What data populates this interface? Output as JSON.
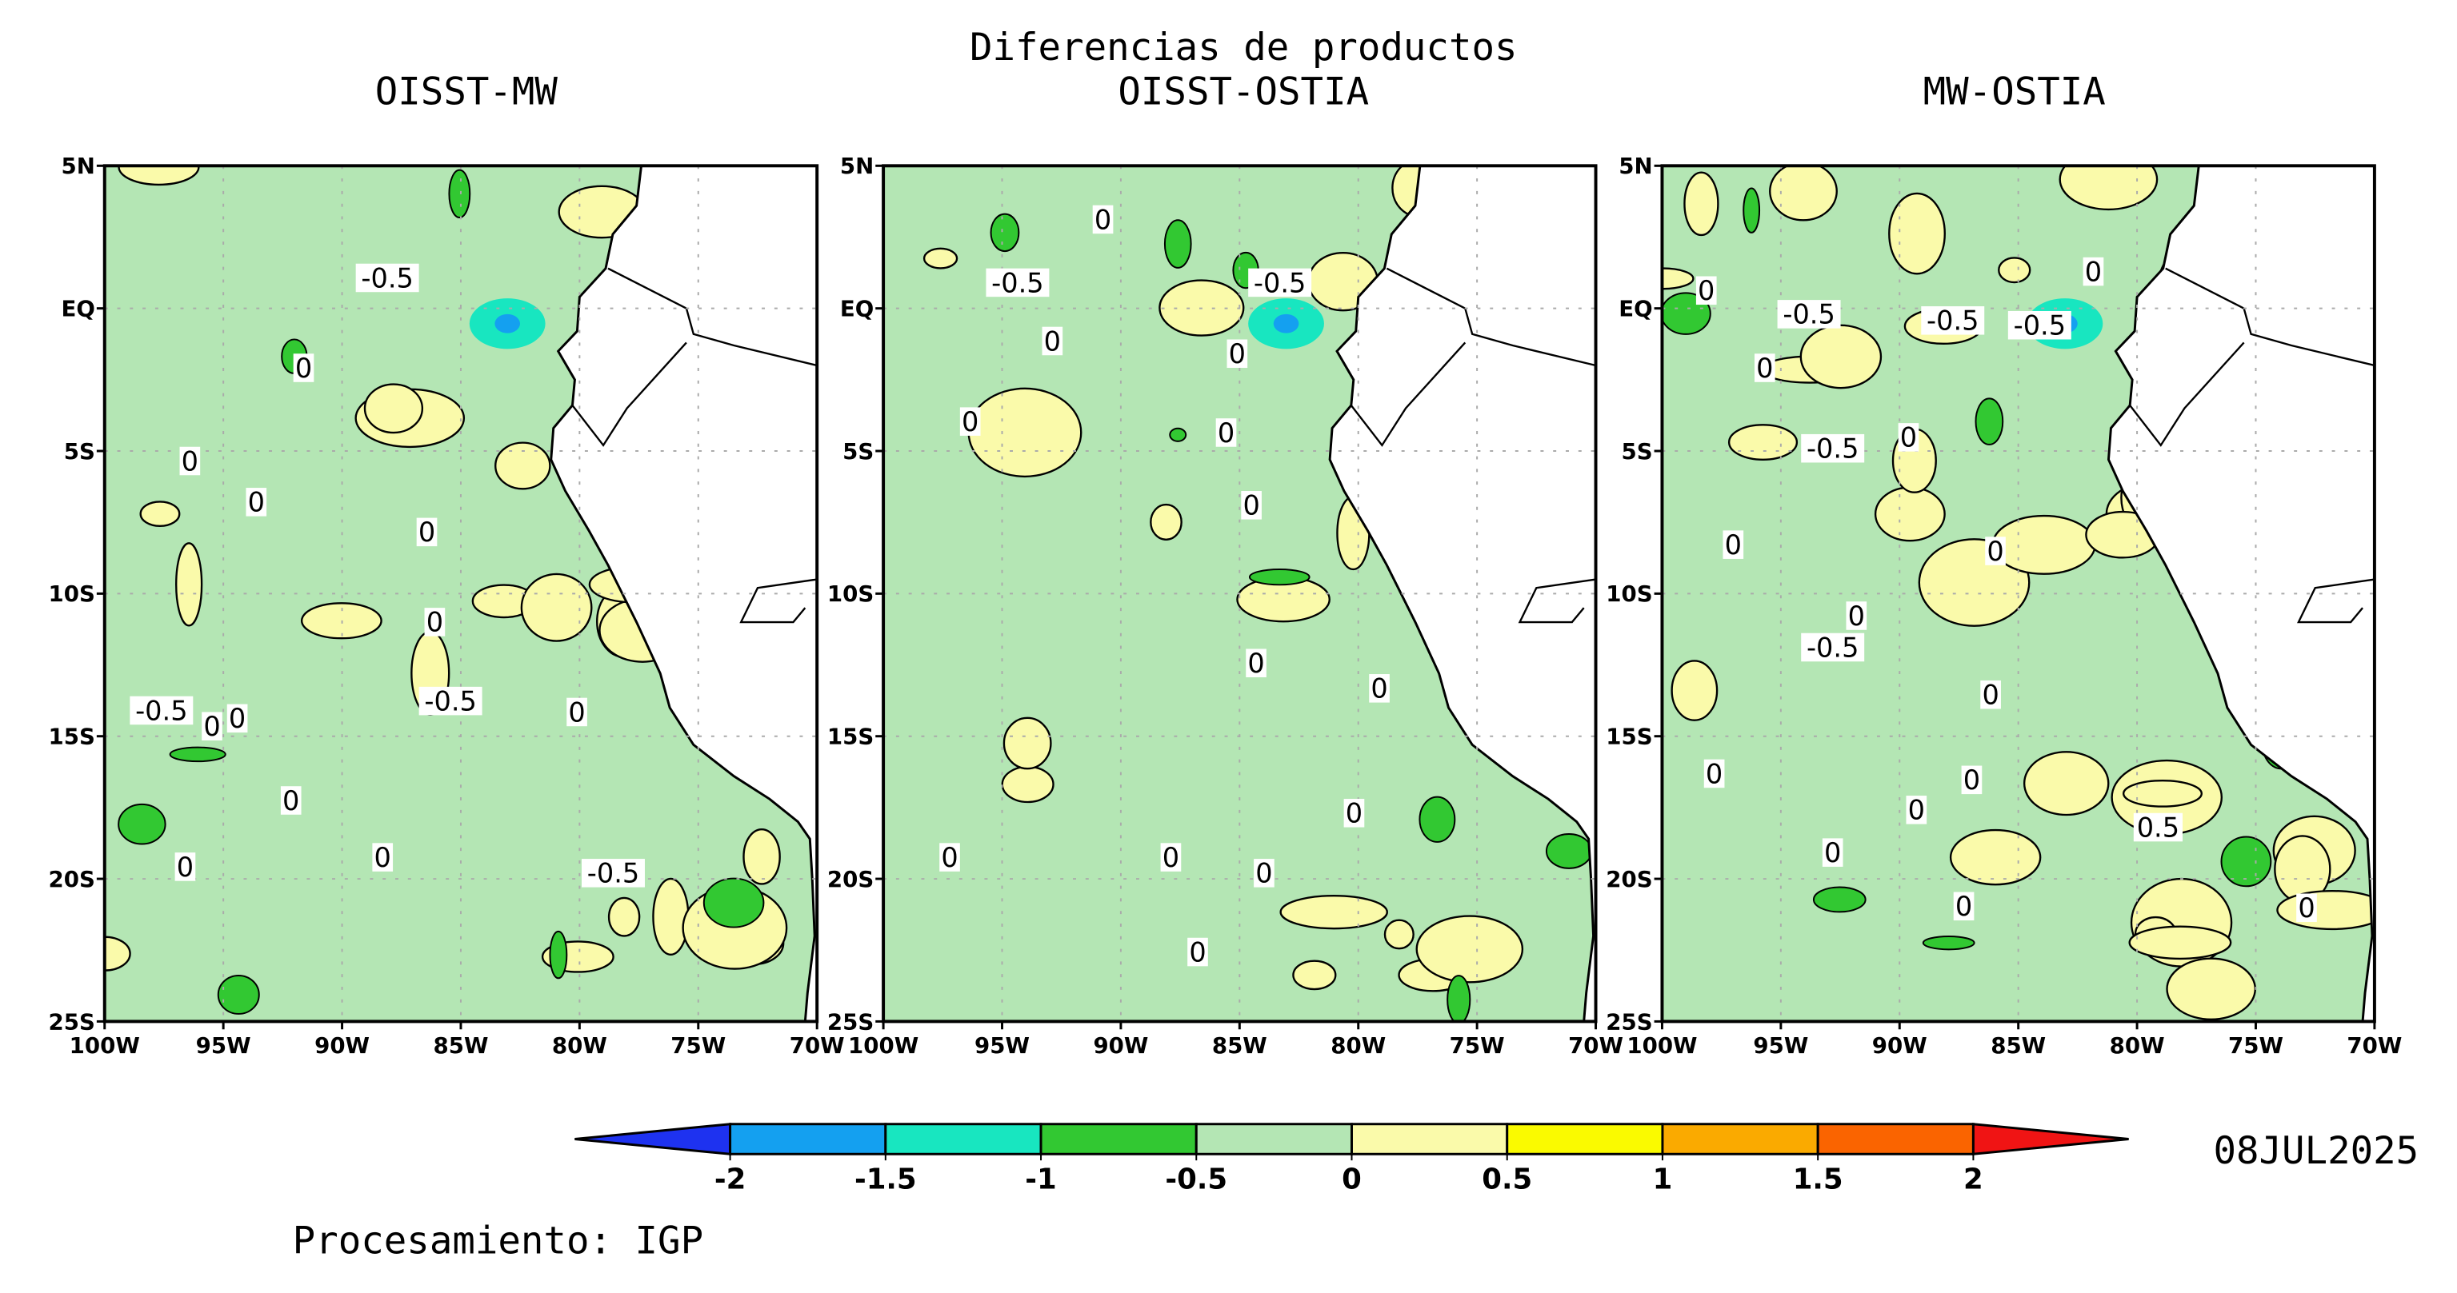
{
  "title": "Diferencias de productos",
  "date": "08JUL2025",
  "credit": "Procesamiento: IGP",
  "lat_ticks": [
    "5N",
    "EQ",
    "5S",
    "10S",
    "15S",
    "20S",
    "25S"
  ],
  "lon_ticks": [
    "100W",
    "95W",
    "90W",
    "85W",
    "80W",
    "75W",
    "70W"
  ],
  "panels": [
    {
      "title": "OISST-MW",
      "contour_labels": [
        "-0.5",
        "0",
        "0",
        "0",
        "0",
        "0",
        "-0.5",
        "0",
        "0",
        "-0.5",
        "0",
        "0",
        "0",
        "0",
        "-0.5"
      ]
    },
    {
      "title": "OISST-OSTIA",
      "contour_labels": [
        "-0.5",
        "-0.5",
        "0",
        "0",
        "0",
        "0",
        "0",
        "0",
        "0",
        "0",
        "0",
        "0",
        "0",
        "0",
        "0"
      ]
    },
    {
      "title": "MW-OSTIA",
      "contour_labels": [
        "0",
        "-0.5",
        "-0.5",
        "-0.5",
        "0",
        "0",
        "-0.5",
        "0",
        "0",
        "0",
        "-0.5",
        "0",
        "0",
        "0",
        "0",
        "0",
        "0.5",
        "0",
        "0",
        "0"
      ]
    }
  ],
  "colorbar": {
    "levels": [
      -2,
      -1.5,
      -1,
      -0.5,
      0,
      0.5,
      1,
      1.5,
      2
    ],
    "colors": [
      "#1e32f0",
      "#14a0f0",
      "#18e6c0",
      "#32c832",
      "#b4e6b4",
      "#fafaaa",
      "#fafa00",
      "#faaa00",
      "#fa6400",
      "#f01414"
    ]
  }
}
